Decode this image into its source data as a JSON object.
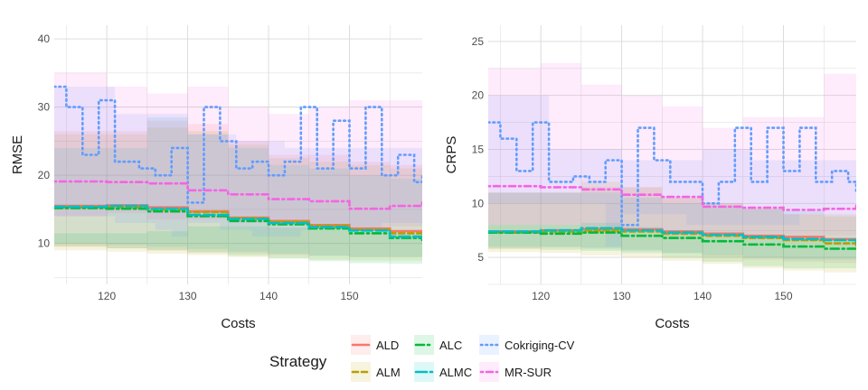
{
  "legend": {
    "title": "Strategy",
    "position": "bottom",
    "entries": [
      {
        "name": "ALD",
        "color": "#F8766D",
        "dash": "solid"
      },
      {
        "name": "ALM",
        "color": "#B79F00",
        "dash": "dashed"
      },
      {
        "name": "ALC",
        "color": "#00BA38",
        "dash": "dash-dot"
      },
      {
        "name": "ALMC",
        "color": "#00BFC4",
        "dash": "long-dash"
      },
      {
        "name": "Cokriging-CV",
        "color": "#619CFF",
        "dash": "dotted"
      },
      {
        "name": "MR-SUR",
        "color": "#F564E3",
        "dash": "dot-dash"
      }
    ]
  },
  "chart_data": [
    {
      "type": "line",
      "xlabel": "Costs",
      "ylabel": "RMSE",
      "xlim": [
        113.5,
        159
      ],
      "ylim": [
        4,
        42
      ],
      "xticks": [
        120,
        130,
        140,
        150
      ],
      "yticks": [
        10,
        20,
        30,
        40
      ],
      "grid": true,
      "series": [
        {
          "name": "ALD",
          "color": "#F8766D",
          "dash": "solid",
          "x": [
            113.5,
            120,
            125,
            130,
            135,
            140,
            145,
            150,
            155,
            159
          ],
          "y": [
            15.5,
            15.6,
            15.3,
            14.7,
            13.8,
            13.3,
            12.7,
            12.2,
            11.8,
            11.5
          ],
          "band_low": [
            9.5,
            9.5,
            9.3,
            9.0,
            8.8,
            8.5,
            8.3,
            8.2,
            8.0,
            8.0
          ],
          "band_high": [
            26.5,
            26.5,
            28.0,
            27.5,
            25.0,
            23.0,
            23.0,
            22.0,
            21.5,
            21.0
          ]
        },
        {
          "name": "ALM",
          "color": "#B79F00",
          "dash": "dashed",
          "x": [
            113.5,
            120,
            125,
            130,
            135,
            140,
            145,
            150,
            155,
            159
          ],
          "y": [
            15.3,
            15.3,
            15.0,
            14.6,
            13.7,
            13.2,
            12.6,
            12.0,
            11.5,
            11.2
          ],
          "band_low": [
            9.0,
            9.0,
            8.8,
            8.5,
            8.3,
            8.0,
            7.8,
            7.6,
            7.5,
            7.5
          ],
          "band_high": [
            26.0,
            26.0,
            27.0,
            26.5,
            24.5,
            22.5,
            22.0,
            21.5,
            21.0,
            20.5
          ]
        },
        {
          "name": "ALC",
          "color": "#00BA38",
          "dash": "dash-dot",
          "x": [
            113.5,
            120,
            125,
            130,
            135,
            140,
            145,
            150,
            155,
            159
          ],
          "y": [
            15.2,
            15.1,
            14.7,
            14.0,
            13.3,
            12.8,
            12.2,
            11.5,
            10.8,
            10.5
          ],
          "band_low": [
            9.8,
            9.6,
            9.3,
            9.0,
            8.6,
            8.2,
            7.8,
            7.4,
            7.1,
            7.0
          ],
          "band_high": [
            11.5,
            11.5,
            11.8,
            12.5,
            12.5,
            12.3,
            12.0,
            11.8,
            11.5,
            11.5
          ]
        },
        {
          "name": "ALMC",
          "color": "#00BFC4",
          "dash": "long-dash",
          "x": [
            113.5,
            120,
            125,
            130,
            135,
            140,
            145,
            150,
            155,
            159
          ],
          "y": [
            15.4,
            15.5,
            15.1,
            14.2,
            13.6,
            13.0,
            12.4,
            11.9,
            11.0,
            10.6
          ],
          "band_low": [
            10.0,
            10.0,
            9.8,
            9.5,
            9.2,
            8.8,
            8.5,
            8.2,
            8.0,
            8.0
          ],
          "band_high": [
            24.0,
            24.0,
            28.5,
            26.0,
            24.0,
            21.5,
            21.0,
            20.0,
            19.5,
            19.0
          ]
        },
        {
          "name": "Cokriging-CV",
          "color": "#619CFF",
          "dash": "dotted",
          "x": [
            113.5,
            115,
            117,
            119,
            121,
            124,
            126,
            128,
            130,
            132,
            134,
            136,
            138,
            140,
            142,
            144,
            146,
            148,
            150,
            152,
            154,
            156,
            158,
            159
          ],
          "y": [
            33,
            30,
            23,
            31,
            22,
            21,
            20,
            24,
            16,
            30,
            25,
            21,
            22,
            20,
            22,
            30,
            21,
            28,
            21,
            30,
            20,
            23,
            19,
            20
          ],
          "band_low": [
            14,
            14,
            14,
            14,
            14,
            13,
            13,
            12,
            11,
            13,
            13,
            12,
            12,
            11,
            11,
            11,
            12,
            12,
            12,
            12,
            12,
            13,
            13,
            13
          ],
          "band_high": [
            33,
            33,
            33,
            33,
            29,
            29,
            29,
            29,
            26,
            26,
            26,
            25,
            25,
            25,
            24,
            24,
            24,
            24,
            24,
            24,
            24,
            24,
            24,
            24
          ]
        },
        {
          "name": "MR-SUR",
          "color": "#F564E3",
          "dash": "dot-dash",
          "x": [
            113.5,
            120,
            125,
            130,
            135,
            140,
            145,
            150,
            155,
            159
          ],
          "y": [
            19.1,
            19.0,
            18.8,
            17.8,
            17.2,
            16.5,
            16.2,
            15.1,
            15.5,
            16.2
          ],
          "band_low": [
            14.0,
            14.0,
            14.5,
            13.5,
            13.5,
            13.0,
            13.0,
            12.5,
            12.5,
            12.5
          ],
          "band_high": [
            35.0,
            33.0,
            32.0,
            33.0,
            30.0,
            29.0,
            30.0,
            31.0,
            31.0,
            31.0
          ]
        }
      ]
    },
    {
      "type": "line",
      "xlabel": "Costs",
      "ylabel": "CRPS",
      "xlim": [
        113.5,
        159
      ],
      "ylim": [
        2.5,
        26.5
      ],
      "xticks": [
        120,
        130,
        140,
        150
      ],
      "yticks": [
        5,
        10,
        15,
        20,
        25
      ],
      "grid": true,
      "series": [
        {
          "name": "ALD",
          "color": "#F8766D",
          "dash": "solid",
          "x": [
            113.5,
            120,
            125,
            130,
            135,
            140,
            145,
            150,
            155,
            159
          ],
          "y": [
            7.4,
            7.5,
            7.6,
            7.6,
            7.4,
            7.2,
            7.0,
            6.9,
            6.7,
            6.5
          ],
          "band_low": [
            5.8,
            5.8,
            5.9,
            5.9,
            5.7,
            5.4,
            5.0,
            4.8,
            4.6,
            4.5
          ],
          "band_high": [
            11.0,
            11.0,
            11.5,
            11.5,
            10.5,
            10.0,
            9.5,
            9.0,
            9.0,
            9.0
          ]
        },
        {
          "name": "ALM",
          "color": "#B79F00",
          "dash": "dashed",
          "x": [
            113.5,
            120,
            125,
            130,
            135,
            140,
            145,
            150,
            155,
            159
          ],
          "y": [
            7.3,
            7.4,
            7.5,
            7.4,
            7.2,
            7.0,
            6.8,
            6.6,
            6.3,
            6.0
          ],
          "band_low": [
            5.5,
            5.5,
            5.4,
            5.2,
            5.0,
            4.7,
            4.4,
            4.0,
            3.8,
            3.6
          ],
          "band_high": [
            11.0,
            11.0,
            12.0,
            11.5,
            10.5,
            10.0,
            9.5,
            9.0,
            8.8,
            8.6
          ]
        },
        {
          "name": "ALC",
          "color": "#00BA38",
          "dash": "dash-dot",
          "x": [
            113.5,
            120,
            125,
            130,
            135,
            140,
            145,
            150,
            155,
            159
          ],
          "y": [
            7.3,
            7.2,
            7.3,
            7.0,
            6.8,
            6.5,
            6.2,
            6.0,
            5.8,
            5.6
          ],
          "band_low": [
            5.8,
            5.8,
            5.7,
            5.6,
            5.4,
            5.0,
            4.6,
            4.2,
            4.0,
            4.0
          ],
          "band_high": [
            8.0,
            8.0,
            8.2,
            7.8,
            7.5,
            7.2,
            7.0,
            7.0,
            6.8,
            6.8
          ]
        },
        {
          "name": "ALMC",
          "color": "#00BFC4",
          "dash": "long-dash",
          "x": [
            113.5,
            120,
            125,
            130,
            135,
            140,
            145,
            150,
            155,
            159
          ],
          "y": [
            7.4,
            7.5,
            7.7,
            7.5,
            7.3,
            7.1,
            6.9,
            6.7,
            6.6,
            6.4
          ],
          "band_low": [
            6.0,
            6.0,
            6.0,
            5.8,
            5.6,
            5.4,
            5.2,
            5.0,
            4.8,
            4.8
          ],
          "band_high": [
            11.0,
            11.0,
            11.0,
            10.5,
            10.0,
            9.8,
            9.5,
            9.3,
            9.0,
            9.0
          ]
        },
        {
          "name": "Cokriging-CV",
          "color": "#619CFF",
          "dash": "dotted",
          "x": [
            113.5,
            115,
            117,
            119,
            121,
            124,
            126,
            128,
            130,
            132,
            134,
            136,
            138,
            140,
            142,
            144,
            146,
            148,
            150,
            152,
            154,
            156,
            158,
            159
          ],
          "y": [
            17.5,
            16,
            13,
            17.5,
            12,
            12.5,
            12,
            14,
            8,
            17,
            14,
            12,
            12,
            10,
            12,
            17,
            12,
            17,
            13,
            17,
            12,
            13,
            12,
            11
          ],
          "band_low": [
            10,
            10,
            10,
            10,
            10,
            10,
            10,
            10,
            6,
            9,
            9,
            9,
            9,
            8,
            8,
            8,
            8,
            8,
            8,
            8,
            9,
            9,
            9,
            9
          ],
          "band_high": [
            20,
            20,
            20,
            20,
            15,
            15,
            15,
            15,
            14,
            14,
            14,
            14,
            14,
            15,
            15,
            15,
            14,
            14,
            14,
            14,
            14,
            14,
            14,
            14
          ]
        },
        {
          "name": "MR-SUR",
          "color": "#F564E3",
          "dash": "dot-dash",
          "x": [
            113.5,
            120,
            125,
            130,
            135,
            140,
            145,
            150,
            155,
            159
          ],
          "y": [
            11.6,
            11.5,
            11.3,
            10.8,
            10.6,
            9.7,
            9.6,
            9.4,
            9.5,
            10.0
          ],
          "band_low": [
            8.0,
            8.0,
            8.0,
            7.5,
            7.5,
            7.0,
            7.0,
            7.0,
            7.0,
            7.0
          ],
          "band_high": [
            22.5,
            23.0,
            21.0,
            20.0,
            19.0,
            17.0,
            18.0,
            18.0,
            22.0,
            22.0
          ]
        }
      ]
    }
  ]
}
